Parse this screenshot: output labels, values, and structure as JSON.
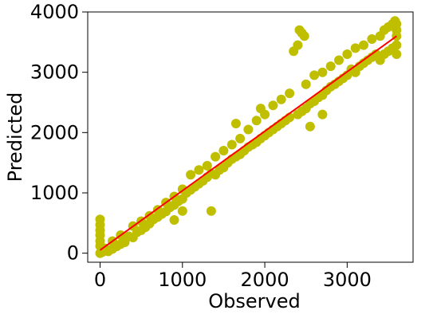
{
  "chart_data": {
    "type": "scatter",
    "title": "",
    "xlabel": "Observed",
    "ylabel": "Predicted",
    "xlim": [
      -150,
      3800
    ],
    "ylim": [
      -150,
      4000
    ],
    "xticks": [
      0,
      1000,
      2000,
      3000
    ],
    "xtick_labels": [
      "0",
      "1000",
      "2000",
      "3000"
    ],
    "yticks": [
      0,
      1000,
      2000,
      3000,
      4000
    ],
    "ytick_labels": [
      "0",
      "1000",
      "2000",
      "3000",
      "4000"
    ],
    "grid": false,
    "legend": "none",
    "series": [
      {
        "kind": "scatter",
        "color": "#bfbf00",
        "points": [
          [
            0,
            0
          ],
          [
            0,
            120
          ],
          [
            0,
            200
          ],
          [
            0,
            300
          ],
          [
            0,
            380
          ],
          [
            0,
            470
          ],
          [
            0,
            560
          ],
          [
            30,
            20
          ],
          [
            50,
            40
          ],
          [
            60,
            80
          ],
          [
            80,
            60
          ],
          [
            100,
            30
          ],
          [
            150,
            70
          ],
          [
            200,
            110
          ],
          [
            250,
            150
          ],
          [
            300,
            180
          ],
          [
            150,
            200
          ],
          [
            250,
            300
          ],
          [
            350,
            280
          ],
          [
            400,
            260
          ],
          [
            450,
            350
          ],
          [
            500,
            380
          ],
          [
            550,
            430
          ],
          [
            600,
            490
          ],
          [
            650,
            560
          ],
          [
            700,
            600
          ],
          [
            750,
            650
          ],
          [
            800,
            690
          ],
          [
            850,
            760
          ],
          [
            900,
            800
          ],
          [
            950,
            860
          ],
          [
            1000,
            900
          ],
          [
            400,
            450
          ],
          [
            500,
            530
          ],
          [
            600,
            620
          ],
          [
            700,
            720
          ],
          [
            800,
            840
          ],
          [
            900,
            940
          ],
          [
            1000,
            1060
          ],
          [
            1050,
            1000
          ],
          [
            1100,
            1050
          ],
          [
            1150,
            1100
          ],
          [
            1200,
            1150
          ],
          [
            1250,
            1200
          ],
          [
            1300,
            1260
          ],
          [
            1350,
            1320
          ],
          [
            1100,
            1300
          ],
          [
            1200,
            1380
          ],
          [
            1300,
            1450
          ],
          [
            1350,
            700
          ],
          [
            1000,
            700
          ],
          [
            900,
            550
          ],
          [
            1400,
            1300
          ],
          [
            1450,
            1380
          ],
          [
            1500,
            1420
          ],
          [
            1550,
            1500
          ],
          [
            1600,
            1560
          ],
          [
            1650,
            1600
          ],
          [
            1700,
            1640
          ],
          [
            1400,
            1600
          ],
          [
            1500,
            1700
          ],
          [
            1600,
            1800
          ],
          [
            1700,
            1900
          ],
          [
            1650,
            2150
          ],
          [
            1750,
            1700
          ],
          [
            1800,
            1760
          ],
          [
            1850,
            1800
          ],
          [
            1900,
            1840
          ],
          [
            1950,
            1900
          ],
          [
            2000,
            1950
          ],
          [
            1800,
            2050
          ],
          [
            1900,
            2200
          ],
          [
            1950,
            2400
          ],
          [
            2000,
            2300
          ],
          [
            2100,
            2450
          ],
          [
            2050,
            2000
          ],
          [
            2100,
            2050
          ],
          [
            2150,
            2100
          ],
          [
            2200,
            2150
          ],
          [
            2250,
            2200
          ],
          [
            2300,
            2250
          ],
          [
            2200,
            2550
          ],
          [
            2300,
            2650
          ],
          [
            2350,
            3350
          ],
          [
            2400,
            3450
          ],
          [
            2420,
            3700
          ],
          [
            2450,
            3650
          ],
          [
            2480,
            3600
          ],
          [
            2400,
            2300
          ],
          [
            2450,
            2350
          ],
          [
            2500,
            2400
          ],
          [
            2550,
            2480
          ],
          [
            2600,
            2520
          ],
          [
            2650,
            2580
          ],
          [
            2700,
            2620
          ],
          [
            2500,
            2800
          ],
          [
            2600,
            2950
          ],
          [
            2700,
            3000
          ],
          [
            2550,
            2100
          ],
          [
            2700,
            2300
          ],
          [
            2750,
            2700
          ],
          [
            2800,
            2760
          ],
          [
            2850,
            2800
          ],
          [
            2900,
            2850
          ],
          [
            2950,
            2900
          ],
          [
            3000,
            2950
          ],
          [
            2800,
            3100
          ],
          [
            2900,
            3200
          ],
          [
            3000,
            3300
          ],
          [
            3050,
            3050
          ],
          [
            3100,
            3000
          ],
          [
            3150,
            3100
          ],
          [
            3200,
            3150
          ],
          [
            3250,
            3200
          ],
          [
            3300,
            3250
          ],
          [
            3350,
            3300
          ],
          [
            3100,
            3400
          ],
          [
            3200,
            3450
          ],
          [
            3300,
            3550
          ],
          [
            3400,
            3600
          ],
          [
            3450,
            3700
          ],
          [
            3500,
            3750
          ],
          [
            3400,
            3200
          ],
          [
            3450,
            3300
          ],
          [
            3500,
            3350
          ],
          [
            3550,
            3400
          ],
          [
            3600,
            3450
          ],
          [
            3600,
            3600
          ],
          [
            3600,
            3700
          ],
          [
            3600,
            3800
          ],
          [
            3600,
            3300
          ],
          [
            3580,
            3850
          ],
          [
            3550,
            3800
          ]
        ]
      },
      {
        "kind": "line",
        "color": "#ff0000",
        "x": [
          0,
          3600
        ],
        "y": [
          50,
          3600
        ]
      }
    ]
  }
}
